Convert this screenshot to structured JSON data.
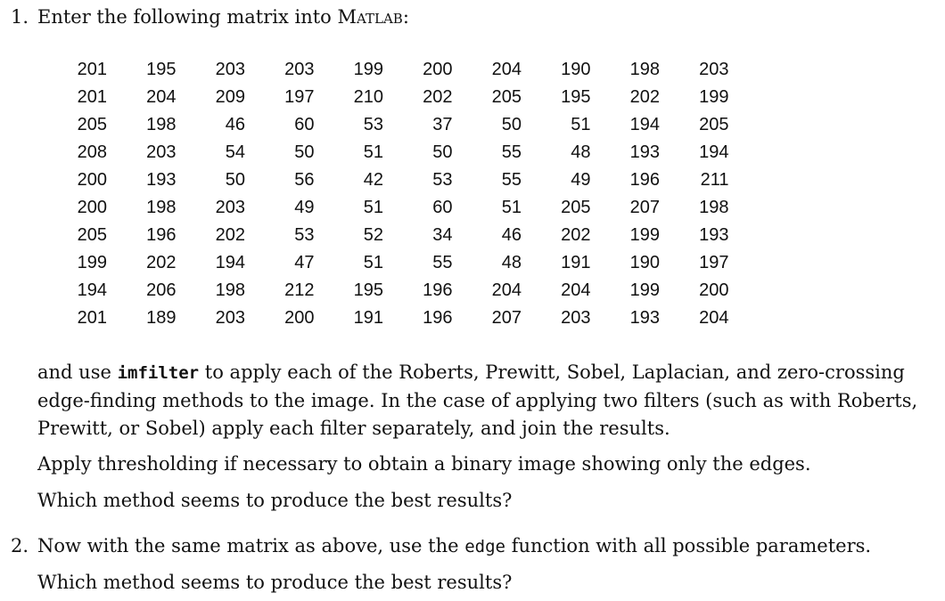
{
  "q1": {
    "number": "1.",
    "intro": "Enter the following matrix into",
    "software": "Matlab",
    "colon": ":"
  },
  "matrix": [
    [
      201,
      195,
      203,
      203,
      199,
      200,
      204,
      190,
      198,
      203
    ],
    [
      201,
      204,
      209,
      197,
      210,
      202,
      205,
      195,
      202,
      199
    ],
    [
      205,
      198,
      46,
      60,
      53,
      37,
      50,
      51,
      194,
      205
    ],
    [
      208,
      203,
      54,
      50,
      51,
      50,
      55,
      48,
      193,
      194
    ],
    [
      200,
      193,
      50,
      56,
      42,
      53,
      55,
      49,
      196,
      211
    ],
    [
      200,
      198,
      203,
      49,
      51,
      60,
      51,
      205,
      207,
      198
    ],
    [
      205,
      196,
      202,
      53,
      52,
      34,
      46,
      202,
      199,
      193
    ],
    [
      199,
      202,
      194,
      47,
      51,
      55,
      48,
      191,
      190,
      197
    ],
    [
      194,
      206,
      198,
      212,
      195,
      196,
      204,
      204,
      199,
      200
    ],
    [
      201,
      189,
      203,
      200,
      191,
      196,
      207,
      203,
      193,
      204
    ]
  ],
  "para1": {
    "before": "and use",
    "code": "imfilter",
    "after": "to apply each of the Roberts, Prewitt, Sobel, Laplacian, and zero-crossing edge-finding methods to the image. In the case of applying two filters (such as with Roberts, Prewitt, or Sobel) apply each filter separately, and join the results."
  },
  "para2": "Apply thresholding if necessary to obtain a binary image showing only the edges.",
  "para3": "Which method seems to produce the best results?",
  "q2": {
    "number": "2.",
    "before": "Now with the same matrix as above, use the",
    "code": "edge",
    "after": "function with all possible parameters."
  },
  "para4": "Which method seems to produce the best results?"
}
